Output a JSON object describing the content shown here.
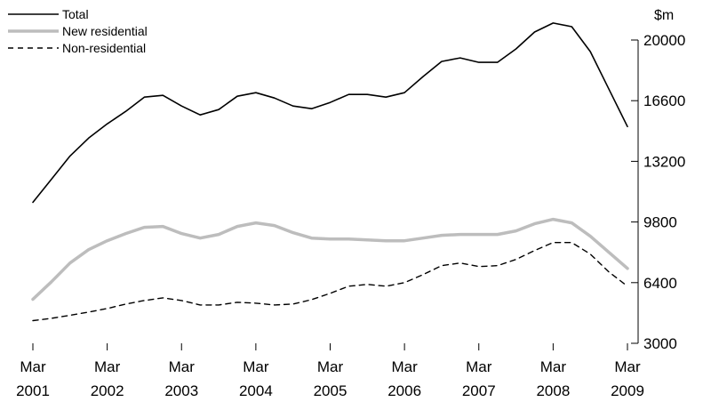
{
  "chart_data": {
    "type": "line",
    "title": "",
    "xlabel": "",
    "ylabel": "$m",
    "ylim": [
      3000,
      20000
    ],
    "yticks": [
      "20000",
      "16600",
      "13200",
      "9800",
      "6400",
      "3000"
    ],
    "xticks": [
      {
        "month": "Mar",
        "year": "2001",
        "x": 2001.0
      },
      {
        "month": "Mar",
        "year": "2002",
        "x": 2002.0
      },
      {
        "month": "Mar",
        "year": "2003",
        "x": 2003.0
      },
      {
        "month": "Mar",
        "year": "2004",
        "x": 2004.0
      },
      {
        "month": "Mar",
        "year": "2005",
        "x": 2005.0
      },
      {
        "month": "Mar",
        "year": "2006",
        "x": 2006.0
      },
      {
        "month": "Mar",
        "year": "2007",
        "x": 2007.0
      },
      {
        "month": "Mar",
        "year": "2008",
        "x": 2008.0
      },
      {
        "month": "Mar",
        "year": "2009",
        "x": 2009.0
      }
    ],
    "x": [
      2001.0,
      2001.25,
      2001.5,
      2001.75,
      2002.0,
      2002.25,
      2002.5,
      2002.75,
      2003.0,
      2003.25,
      2003.5,
      2003.75,
      2004.0,
      2004.25,
      2004.5,
      2004.75,
      2005.0,
      2005.25,
      2005.5,
      2005.75,
      2006.0,
      2006.25,
      2006.5,
      2006.75,
      2007.0,
      2007.25,
      2007.5,
      2007.75,
      2008.0,
      2008.25,
      2008.5,
      2008.75,
      2009.0
    ],
    "legend_position": "top-left",
    "grid": false,
    "series": [
      {
        "name": "Total",
        "style": "solid-black",
        "values": [
          10900,
          12200,
          13500,
          14500,
          15300,
          16000,
          16800,
          16900,
          16300,
          15800,
          16100,
          16850,
          17050,
          16750,
          16300,
          16150,
          16500,
          16950,
          16950,
          16800,
          17050,
          17950,
          18800,
          19000,
          18750,
          18750,
          19500,
          20450,
          20950,
          20750,
          19350,
          17250,
          15150
        ]
      },
      {
        "name": "New residential",
        "style": "solid-grey",
        "values": [
          5470,
          6450,
          7500,
          8250,
          8750,
          9150,
          9500,
          9550,
          9150,
          8900,
          9100,
          9550,
          9750,
          9600,
          9200,
          8900,
          8850,
          8850,
          8800,
          8750,
          8750,
          8900,
          9050,
          9100,
          9100,
          9100,
          9300,
          9700,
          9950,
          9750,
          9000,
          8100,
          7200
        ]
      },
      {
        "name": "Non-residential",
        "style": "dashed-black",
        "values": [
          4270,
          4400,
          4570,
          4750,
          4950,
          5200,
          5400,
          5550,
          5400,
          5150,
          5150,
          5300,
          5250,
          5150,
          5200,
          5450,
          5800,
          6200,
          6300,
          6200,
          6400,
          6850,
          7350,
          7500,
          7300,
          7350,
          7700,
          8200,
          8650,
          8650,
          8000,
          7000,
          6200
        ]
      }
    ]
  }
}
